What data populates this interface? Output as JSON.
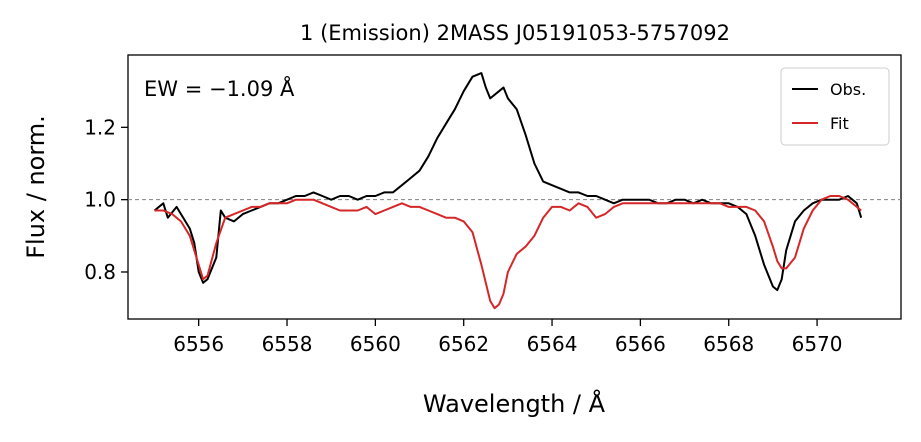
{
  "chart_data": {
    "type": "line",
    "title": "1 (Emission) 2MASS J05191053-5757092",
    "xlabel": "Wavelength / Å",
    "ylabel": "Flux / norm.",
    "xlim": [
      6554.4,
      6571.9
    ],
    "ylim": [
      0.67,
      1.4
    ],
    "xticks": [
      6556,
      6558,
      6560,
      6562,
      6564,
      6566,
      6568,
      6570
    ],
    "yticks": [
      0.8,
      1.0,
      1.2
    ],
    "reference_line": 1.0,
    "annotation": "EW = −1.09 Å",
    "legend": {
      "placement": "top-right",
      "entries": [
        "Obs.",
        "Fit"
      ]
    },
    "series": [
      {
        "name": "Obs.",
        "color": "#000000",
        "x": [
          6555.0,
          6555.2,
          6555.3,
          6555.5,
          6555.6,
          6555.8,
          6555.9,
          6556.0,
          6556.1,
          6556.2,
          6556.4,
          6556.5,
          6556.6,
          6556.8,
          6557.0,
          6557.2,
          6557.4,
          6557.6,
          6557.8,
          6558.0,
          6558.2,
          6558.4,
          6558.6,
          6558.8,
          6559.0,
          6559.2,
          6559.4,
          6559.6,
          6559.8,
          6560.0,
          6560.2,
          6560.4,
          6560.6,
          6560.8,
          6561.0,
          6561.2,
          6561.4,
          6561.6,
          6561.8,
          6562.0,
          6562.2,
          6562.4,
          6562.5,
          6562.6,
          6562.8,
          6562.9,
          6563.0,
          6563.2,
          6563.4,
          6563.6,
          6563.8,
          6564.0,
          6564.2,
          6564.4,
          6564.6,
          6564.8,
          6565.0,
          6565.2,
          6565.4,
          6565.6,
          6565.8,
          6566.0,
          6566.2,
          6566.4,
          6566.6,
          6566.8,
          6567.0,
          6567.2,
          6567.4,
          6567.6,
          6567.8,
          6568.0,
          6568.2,
          6568.4,
          6568.6,
          6568.8,
          6569.0,
          6569.1,
          6569.2,
          6569.3,
          6569.5,
          6569.7,
          6569.9,
          6570.1,
          6570.3,
          6570.5,
          6570.7,
          6570.9,
          6571.0
        ],
        "y": [
          0.97,
          0.99,
          0.95,
          0.98,
          0.96,
          0.92,
          0.88,
          0.8,
          0.77,
          0.78,
          0.84,
          0.97,
          0.95,
          0.94,
          0.96,
          0.97,
          0.98,
          0.99,
          0.99,
          1.0,
          1.01,
          1.01,
          1.02,
          1.01,
          1.0,
          1.01,
          1.01,
          1.0,
          1.01,
          1.01,
          1.02,
          1.02,
          1.04,
          1.06,
          1.08,
          1.12,
          1.17,
          1.21,
          1.25,
          1.3,
          1.34,
          1.35,
          1.31,
          1.28,
          1.3,
          1.31,
          1.28,
          1.25,
          1.18,
          1.1,
          1.05,
          1.04,
          1.03,
          1.02,
          1.02,
          1.01,
          1.01,
          1.0,
          0.99,
          1.0,
          1.0,
          1.0,
          1.0,
          0.99,
          0.99,
          1.0,
          1.0,
          0.99,
          1.0,
          0.99,
          0.99,
          0.99,
          0.98,
          0.96,
          0.9,
          0.82,
          0.76,
          0.75,
          0.78,
          0.86,
          0.94,
          0.97,
          0.99,
          1.0,
          1.0,
          1.0,
          1.01,
          0.99,
          0.95
        ]
      },
      {
        "name": "Fit",
        "color": "#d62728",
        "x": [
          6555.0,
          6555.2,
          6555.4,
          6555.6,
          6555.8,
          6556.0,
          6556.1,
          6556.2,
          6556.4,
          6556.6,
          6556.8,
          6557.0,
          6557.2,
          6557.4,
          6557.6,
          6557.8,
          6558.0,
          6558.2,
          6558.4,
          6558.6,
          6558.8,
          6559.0,
          6559.2,
          6559.4,
          6559.6,
          6559.8,
          6560.0,
          6560.2,
          6560.4,
          6560.6,
          6560.8,
          6561.0,
          6561.2,
          6561.4,
          6561.6,
          6561.8,
          6562.0,
          6562.2,
          6562.4,
          6562.6,
          6562.7,
          6562.8,
          6562.9,
          6563.0,
          6563.2,
          6563.4,
          6563.6,
          6563.8,
          6564.0,
          6564.2,
          6564.4,
          6564.6,
          6564.8,
          6565.0,
          6565.2,
          6565.4,
          6565.6,
          6565.8,
          6566.0,
          6566.2,
          6566.4,
          6566.6,
          6566.8,
          6567.0,
          6567.2,
          6567.4,
          6567.6,
          6567.8,
          6568.0,
          6568.2,
          6568.4,
          6568.6,
          6568.8,
          6569.0,
          6569.1,
          6569.2,
          6569.3,
          6569.5,
          6569.7,
          6569.9,
          6570.1,
          6570.3,
          6570.5,
          6570.7,
          6570.9,
          6571.0
        ],
        "y": [
          0.97,
          0.97,
          0.96,
          0.94,
          0.9,
          0.82,
          0.78,
          0.79,
          0.88,
          0.95,
          0.96,
          0.97,
          0.98,
          0.98,
          0.99,
          0.99,
          0.99,
          1.0,
          1.0,
          1.0,
          0.99,
          0.98,
          0.97,
          0.97,
          0.97,
          0.98,
          0.96,
          0.97,
          0.98,
          0.99,
          0.98,
          0.98,
          0.97,
          0.96,
          0.95,
          0.95,
          0.94,
          0.91,
          0.82,
          0.72,
          0.7,
          0.71,
          0.74,
          0.8,
          0.85,
          0.87,
          0.9,
          0.95,
          0.98,
          0.98,
          0.97,
          0.99,
          0.98,
          0.95,
          0.96,
          0.98,
          0.99,
          0.99,
          0.99,
          0.99,
          0.99,
          0.99,
          0.99,
          0.99,
          0.99,
          0.99,
          0.99,
          0.99,
          0.98,
          0.98,
          0.98,
          0.97,
          0.94,
          0.87,
          0.83,
          0.81,
          0.81,
          0.84,
          0.92,
          0.97,
          1.0,
          1.01,
          1.01,
          1.0,
          0.98,
          0.97
        ]
      }
    ]
  }
}
